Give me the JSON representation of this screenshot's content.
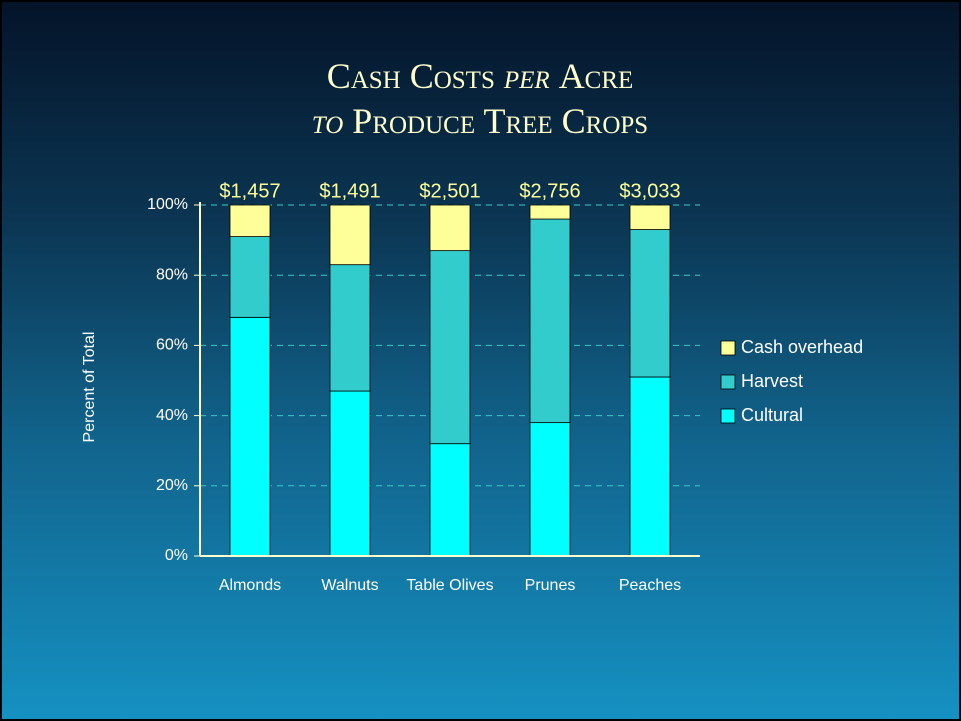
{
  "chart_data": {
    "type": "stacked_bar",
    "title_lines": [
      [
        "Cash Costs",
        "per",
        "Acre"
      ],
      [
        "to",
        "Produce Tree Crops"
      ]
    ],
    "ylabel": "Percent of Total",
    "categories": [
      "Almonds",
      "Walnuts",
      "Table Olives",
      "Prunes",
      "Peaches"
    ],
    "series": [
      {
        "name": "Cultural",
        "color": "#00ffff",
        "values": [
          68,
          47,
          32,
          38,
          51
        ]
      },
      {
        "name": "Harvest",
        "color": "#33cccc",
        "values": [
          23,
          36,
          55,
          58,
          42
        ]
      },
      {
        "name": "Cash overhead",
        "color": "#ffff99",
        "values": [
          9,
          17,
          13,
          4,
          7
        ]
      }
    ],
    "annotations": [
      "$1,457",
      "$1,491",
      "$2,501",
      "$2,756",
      "$3,033"
    ],
    "ylim": [
      0,
      100
    ],
    "yticks": [
      {
        "value": 0,
        "label": "0%"
      },
      {
        "value": 20,
        "label": "20%"
      },
      {
        "value": 40,
        "label": "40%"
      },
      {
        "value": 60,
        "label": "60%"
      },
      {
        "value": 80,
        "label": "80%"
      },
      {
        "value": 100,
        "label": "100%"
      }
    ],
    "grid": true,
    "legend": "right"
  }
}
